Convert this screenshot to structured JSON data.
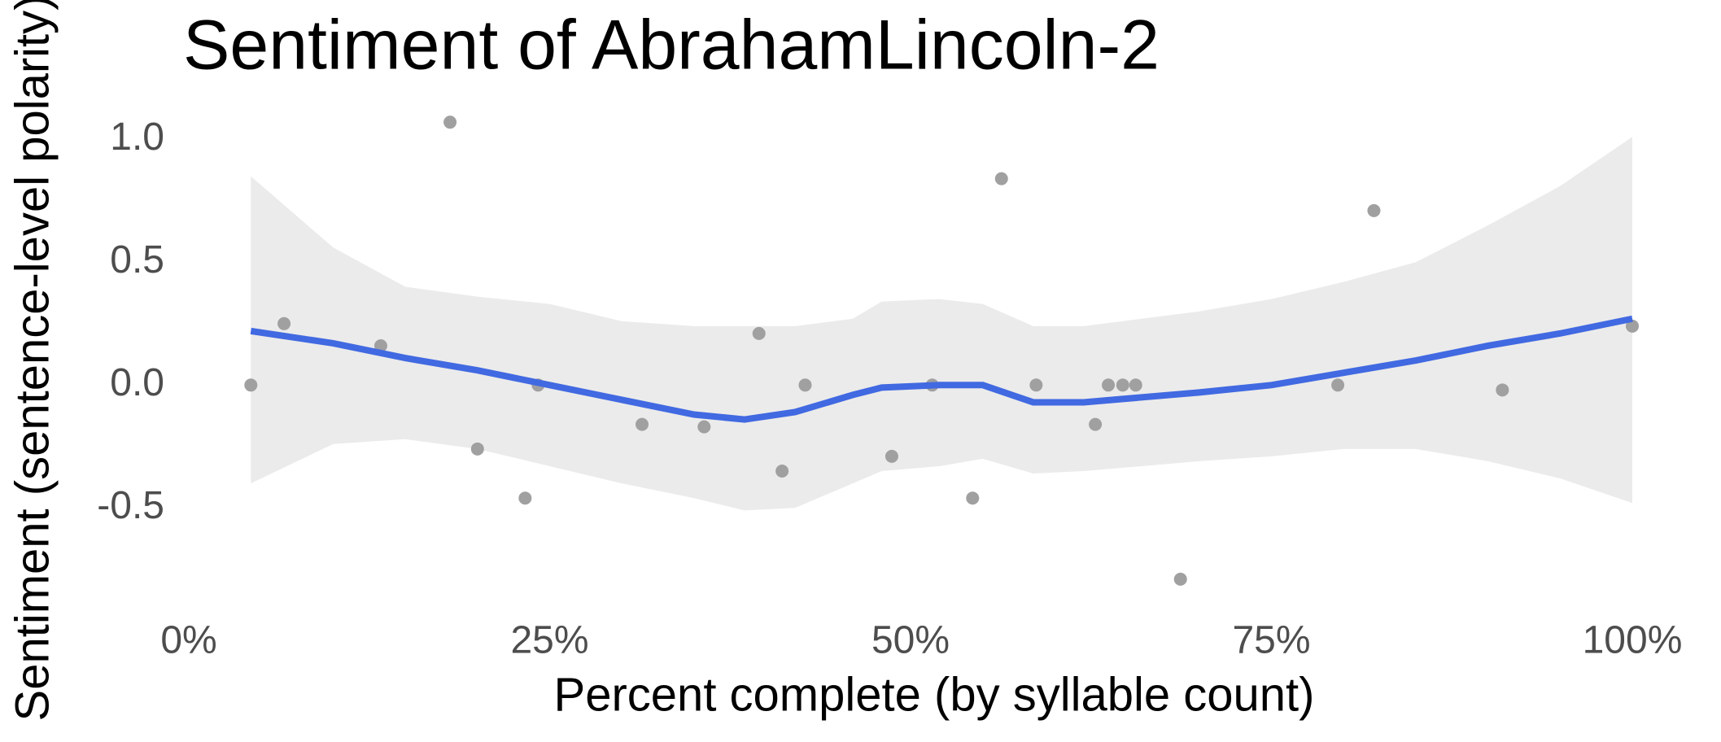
{
  "chart_data": {
    "type": "scatter",
    "title": "Sentiment of AbrahamLincoln-2",
    "x_label": "Percent complete (by syllable count)",
    "y_label": "Sentiment (sentence-level polarity)",
    "x": [
      4.3,
      6.6,
      13.3,
      18.1,
      20.0,
      23.3,
      24.2,
      31.4,
      35.7,
      39.5,
      41.1,
      42.7,
      48.7,
      51.5,
      54.3,
      56.3,
      58.7,
      62.8,
      63.7,
      64.7,
      65.6,
      68.7,
      79.6,
      82.1,
      91.0,
      100
    ],
    "values": [
      0.0,
      0.25,
      0.16,
      1.07,
      -0.26,
      -0.46,
      0.0,
      -0.16,
      -0.17,
      0.21,
      -0.35,
      0.0,
      -0.29,
      0.0,
      -0.46,
      0.84,
      0.0,
      -0.16,
      0.0,
      0.0,
      0.0,
      -0.79,
      0.0,
      0.71,
      -0.02,
      0.24
    ],
    "color": "#a0a0a0",
    "smooth": {
      "color": "#4169e1",
      "band_color": "#ebebeb",
      "x": [
        4.3,
        10,
        15,
        20,
        25,
        30,
        35,
        38.5,
        42,
        46,
        48,
        52,
        55,
        58.5,
        62,
        70,
        75,
        80,
        85,
        90,
        95,
        100
      ],
      "values": [
        0.22,
        0.17,
        0.11,
        0.06,
        0.0,
        -0.06,
        -0.12,
        -0.14,
        -0.11,
        -0.04,
        -0.01,
        0.0,
        0.0,
        -0.07,
        -0.07,
        -0.03,
        0.0,
        0.05,
        0.1,
        0.16,
        0.21,
        0.27
      ],
      "upper": [
        0.85,
        0.56,
        0.4,
        0.36,
        0.33,
        0.26,
        0.24,
        0.24,
        0.24,
        0.27,
        0.34,
        0.35,
        0.33,
        0.24,
        0.24,
        0.3,
        0.35,
        0.42,
        0.5,
        0.65,
        0.81,
        1.01
      ],
      "lower": [
        -0.4,
        -0.24,
        -0.22,
        -0.26,
        -0.33,
        -0.4,
        -0.46,
        -0.51,
        -0.5,
        -0.4,
        -0.35,
        -0.33,
        -0.3,
        -0.36,
        -0.35,
        -0.31,
        -0.29,
        -0.26,
        -0.26,
        -0.31,
        -0.38,
        -0.48
      ]
    },
    "xlim": [
      0,
      100
    ],
    "xticks": [
      {
        "value": 0,
        "label": "0%"
      },
      {
        "value": 25,
        "label": "25%"
      },
      {
        "value": 50,
        "label": "50%"
      },
      {
        "value": 75,
        "label": "75%"
      },
      {
        "value": 100,
        "label": "100%"
      }
    ],
    "ylim": [
      -0.85,
      1.15
    ],
    "yticks": [
      -0.5,
      {
        "value": 0,
        "label": "0.0"
      },
      0.5,
      {
        "value": 1,
        "label": "1.0"
      }
    ],
    "grid": false
  }
}
